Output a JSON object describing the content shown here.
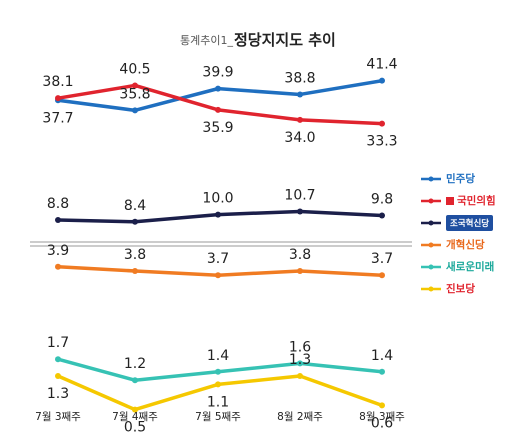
{
  "header": {
    "prefix": "통계추이1_",
    "title": "정당지지도 추이"
  },
  "chart_data": {
    "type": "line",
    "title": "정당지지도 추이",
    "xlabel": "",
    "ylabel": "",
    "categories": [
      "7월 3째주",
      "7월 4째주",
      "7월 5째주",
      "8월 2째주",
      "8월 3째주"
    ],
    "axis_break": true,
    "grid": false,
    "legend_position": "right",
    "series": [
      {
        "name": "민주당",
        "color": "#1f6fc0",
        "values": [
          37.7,
          35.8,
          39.9,
          38.8,
          41.4
        ]
      },
      {
        "name": "국민의힘",
        "color": "#e0242e",
        "values": [
          38.1,
          40.5,
          35.9,
          34.0,
          33.3
        ]
      },
      {
        "name": "조국혁신당",
        "color": "#1b1f4a",
        "values": [
          8.8,
          8.4,
          10.0,
          10.7,
          9.8
        ]
      },
      {
        "name": "개혁신당",
        "color": "#f07b22",
        "values": [
          3.9,
          3.8,
          3.7,
          3.8,
          3.7
        ]
      },
      {
        "name": "새로운미래",
        "color": "#36c2b4",
        "values": [
          1.7,
          1.2,
          1.4,
          1.6,
          1.4
        ]
      },
      {
        "name": "진보당",
        "color": "#f5c800",
        "values": [
          1.3,
          0.5,
          1.1,
          1.3,
          0.6
        ]
      }
    ]
  }
}
